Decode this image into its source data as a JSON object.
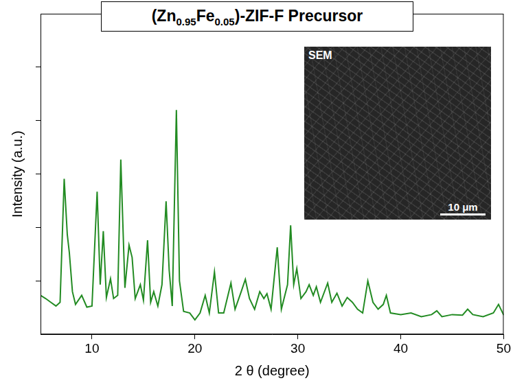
{
  "chart_data": {
    "type": "line",
    "title": "(Zn0.95Fe0.05)-ZIF-F Precursor",
    "x_label": "2 θ (degree)",
    "y_label": "Intensity (a.u.)",
    "annotations": [
      "SEM",
      "10 μm"
    ],
    "color": "#228b22",
    "x": [
      5.0,
      5.5,
      6.0,
      6.5,
      6.9,
      7.3,
      7.6,
      7.8,
      8.1,
      8.4,
      9.0,
      9.5,
      10.0,
      10.5,
      10.8,
      11.1,
      11.4,
      11.8,
      12.1,
      12.5,
      12.8,
      13.2,
      13.6,
      13.9,
      14.2,
      14.7,
      15.0,
      15.4,
      15.7,
      16.0,
      16.4,
      16.8,
      17.2,
      17.5,
      17.8,
      18.2,
      18.5,
      18.9,
      19.5,
      20.0,
      20.5,
      21.0,
      21.4,
      21.9,
      22.3,
      22.8,
      23.5,
      23.9,
      24.5,
      24.9,
      25.3,
      25.8,
      26.3,
      26.7,
      27.0,
      27.4,
      28.0,
      28.4,
      29.0,
      29.3,
      29.6,
      29.9,
      30.3,
      30.8,
      31.1,
      31.5,
      31.8,
      32.2,
      32.9,
      33.3,
      33.8,
      34.3,
      34.8,
      35.3,
      35.8,
      36.3,
      36.8,
      37.3,
      37.8,
      38.3,
      38.6,
      39.0,
      40.0,
      41.0,
      42.0,
      43.0,
      43.5,
      44.0,
      45.0,
      46.0,
      46.5,
      47.0,
      48.0,
      49.0,
      49.5,
      50.0
    ],
    "values": [
      0.73,
      0.67,
      0.6,
      0.53,
      0.6,
      2.91,
      1.87,
      1.53,
      0.8,
      0.56,
      0.73,
      0.51,
      0.53,
      2.67,
      0.93,
      1.93,
      0.69,
      1.04,
      0.67,
      0.73,
      3.27,
      0.87,
      1.67,
      1.44,
      0.67,
      0.93,
      0.64,
      1.76,
      0.6,
      0.8,
      0.53,
      0.93,
      2.49,
      1.2,
      0.53,
      4.2,
      1.0,
      0.43,
      0.4,
      0.27,
      0.4,
      0.73,
      0.4,
      1.17,
      0.4,
      0.4,
      0.96,
      0.47,
      0.8,
      1.03,
      0.67,
      0.47,
      0.8,
      0.67,
      0.76,
      0.47,
      1.63,
      0.47,
      0.93,
      2.04,
      0.93,
      1.23,
      0.67,
      0.8,
      0.93,
      0.73,
      0.89,
      0.6,
      0.96,
      0.6,
      0.77,
      0.53,
      0.69,
      0.6,
      0.47,
      0.4,
      1.0,
      0.6,
      0.47,
      0.56,
      0.73,
      0.4,
      0.37,
      0.4,
      0.33,
      0.37,
      0.44,
      0.33,
      0.37,
      0.36,
      0.47,
      0.37,
      0.33,
      0.4,
      0.56,
      0.36
    ],
    "xlim": [
      5,
      50
    ],
    "xticks": [
      10,
      20,
      30,
      40,
      50
    ],
    "ylim": [
      0,
      6
    ],
    "yticks": [
      1,
      2,
      3,
      4,
      5
    ],
    "tick_labels": "x",
    "grid": false
  }
}
